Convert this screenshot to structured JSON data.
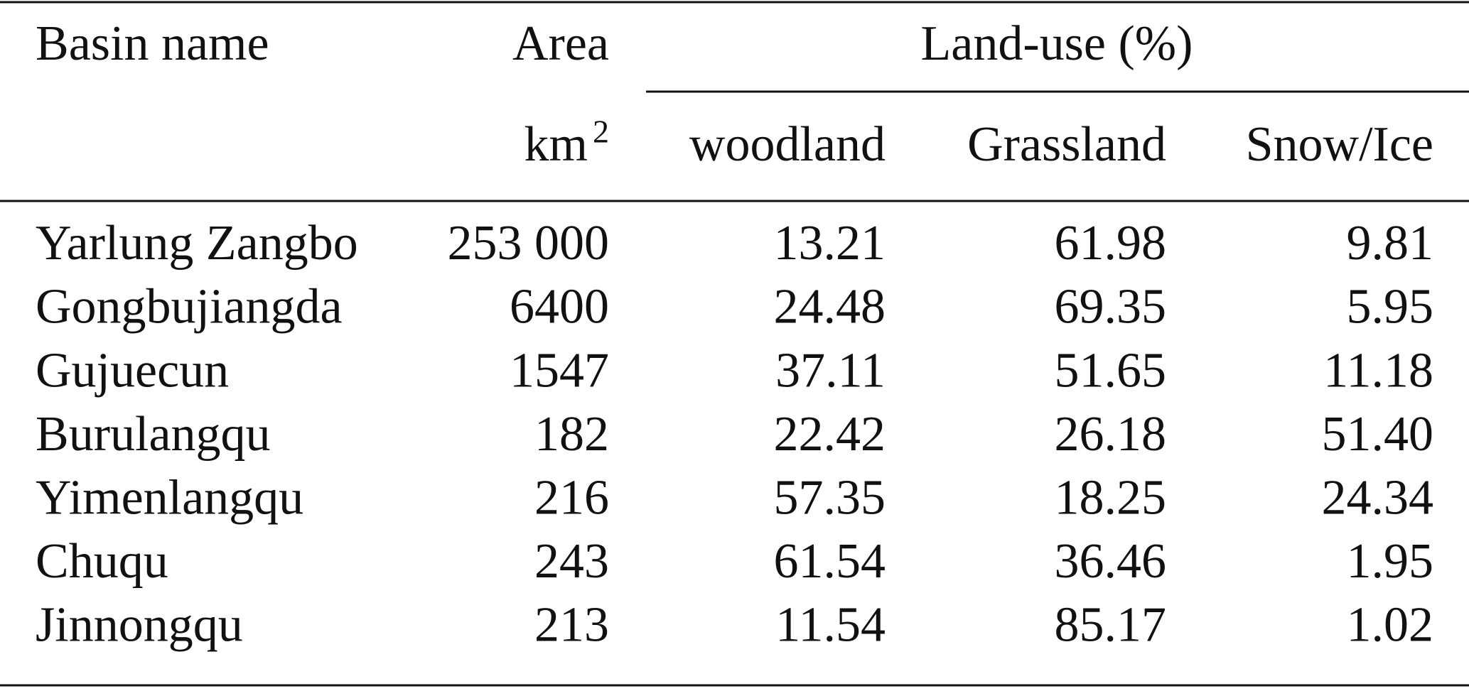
{
  "header": {
    "basin_name": "Basin name",
    "area": "Area",
    "area_unit": "km",
    "area_unit_sup": "2",
    "land_use": "Land-use (%)",
    "columns": [
      "woodland",
      "Grassland",
      "Snow/Ice"
    ]
  },
  "table": {
    "rows": [
      [
        "Yarlung Zangbo",
        "253 000",
        "13.21",
        "61.98",
        "9.81"
      ],
      [
        "Gongbujiangda",
        "6400",
        "24.48",
        "69.35",
        "5.95"
      ],
      [
        "Gujuecun",
        "1547",
        "37.11",
        "51.65",
        "11.18"
      ],
      [
        "Burulangqu",
        "182",
        "22.42",
        "26.18",
        "51.40"
      ],
      [
        "Yimenlangqu",
        "216",
        "57.35",
        "18.25",
        "24.34"
      ],
      [
        "Chuqu",
        "243",
        "61.54",
        "36.46",
        "1.95"
      ],
      [
        "Jinnongqu",
        "213",
        "11.54",
        "85.17",
        "1.02"
      ]
    ]
  }
}
